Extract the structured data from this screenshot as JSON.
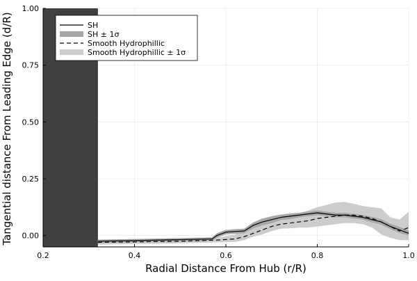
{
  "chart_data": {
    "type": "line",
    "title": "",
    "xlabel": "Radial Distance From Hub (r/R)",
    "ylabel": "Tangential distance From Leading Edge (d/R)",
    "xlim": [
      0.2,
      1.0
    ],
    "ylim": [
      -0.05,
      1.0
    ],
    "xticks": [
      0.2,
      0.4,
      0.6,
      0.8,
      1.0
    ],
    "xtick_labels": [
      "0.2",
      "0.4",
      "0.6",
      "0.8",
      "1.0"
    ],
    "yticks": [
      0.0,
      0.25,
      0.5,
      0.75,
      1.0
    ],
    "ytick_labels": [
      "0.00",
      "0.25",
      "0.50",
      "0.75",
      "1.00"
    ],
    "grid": true,
    "legend_position": "top-left",
    "hub_region": {
      "x_start": 0.2,
      "x_end": 0.32,
      "color": "#404040"
    },
    "series": [
      {
        "name": "SH",
        "style": "solid",
        "color": "#000000",
        "x": [
          0.32,
          0.4,
          0.5,
          0.57,
          0.58,
          0.6,
          0.62,
          0.64,
          0.66,
          0.68,
          0.7,
          0.72,
          0.74,
          0.76,
          0.78,
          0.8,
          0.82,
          0.84,
          0.86,
          0.88,
          0.9,
          0.92,
          0.94,
          0.96,
          0.98,
          1.0
        ],
        "y": [
          -0.025,
          -0.022,
          -0.018,
          -0.015,
          0.0,
          0.015,
          0.018,
          0.02,
          0.045,
          0.06,
          0.07,
          0.08,
          0.085,
          0.09,
          0.095,
          0.1,
          0.095,
          0.09,
          0.09,
          0.085,
          0.08,
          0.07,
          0.06,
          0.04,
          0.025,
          0.01
        ]
      },
      {
        "name": "SH ± 1σ",
        "style": "band",
        "color": "#a6a6a6",
        "x": [
          0.32,
          0.4,
          0.5,
          0.57,
          0.58,
          0.6,
          0.62,
          0.64,
          0.66,
          0.68,
          0.7,
          0.72,
          0.74,
          0.76,
          0.78,
          0.8,
          0.82,
          0.84,
          0.86,
          0.88,
          0.9,
          0.92,
          0.94,
          0.96,
          0.98,
          1.0
        ],
        "lower": [
          -0.032,
          -0.029,
          -0.025,
          -0.022,
          -0.01,
          0.005,
          0.008,
          0.01,
          0.032,
          0.045,
          0.055,
          0.068,
          0.073,
          0.08,
          0.085,
          0.09,
          0.085,
          0.08,
          0.08,
          0.075,
          0.07,
          0.058,
          0.048,
          0.028,
          0.012,
          0.0
        ],
        "upper": [
          -0.018,
          -0.015,
          -0.011,
          -0.008,
          0.01,
          0.025,
          0.028,
          0.03,
          0.058,
          0.075,
          0.085,
          0.092,
          0.097,
          0.1,
          0.105,
          0.11,
          0.105,
          0.1,
          0.1,
          0.095,
          0.09,
          0.082,
          0.072,
          0.052,
          0.038,
          0.022
        ]
      },
      {
        "name": "Smooth Hydrophillic",
        "style": "dashed",
        "color": "#000000",
        "x": [
          0.32,
          0.4,
          0.5,
          0.58,
          0.62,
          0.64,
          0.66,
          0.68,
          0.7,
          0.72,
          0.74,
          0.76,
          0.78,
          0.8,
          0.82,
          0.84,
          0.86,
          0.88,
          0.9,
          0.92,
          0.94,
          0.96,
          0.98,
          1.0
        ],
        "y": [
          -0.03,
          -0.028,
          -0.025,
          -0.02,
          -0.015,
          -0.005,
          0.01,
          0.025,
          0.04,
          0.05,
          0.055,
          0.06,
          0.065,
          0.075,
          0.08,
          0.085,
          0.09,
          0.09,
          0.085,
          0.075,
          0.06,
          0.04,
          0.02,
          0.035
        ]
      },
      {
        "name": "Smooth Hydrophillic ± 1σ",
        "style": "band",
        "color": "#cccccc",
        "x": [
          0.32,
          0.4,
          0.5,
          0.58,
          0.62,
          0.64,
          0.66,
          0.68,
          0.7,
          0.72,
          0.74,
          0.76,
          0.78,
          0.8,
          0.82,
          0.84,
          0.86,
          0.88,
          0.9,
          0.92,
          0.94,
          0.96,
          0.98,
          1.0
        ],
        "lower": [
          -0.04,
          -0.037,
          -0.034,
          -0.03,
          -0.028,
          -0.02,
          -0.005,
          0.005,
          0.02,
          0.03,
          0.032,
          0.035,
          0.035,
          0.04,
          0.045,
          0.05,
          0.055,
          0.055,
          0.05,
          0.035,
          0.005,
          -0.01,
          -0.02,
          -0.02
        ],
        "upper": [
          -0.02,
          -0.018,
          -0.016,
          -0.01,
          0.005,
          0.025,
          0.045,
          0.06,
          0.07,
          0.075,
          0.09,
          0.1,
          0.11,
          0.125,
          0.135,
          0.145,
          0.148,
          0.14,
          0.13,
          0.125,
          0.12,
          0.08,
          0.07,
          0.105
        ]
      }
    ]
  }
}
